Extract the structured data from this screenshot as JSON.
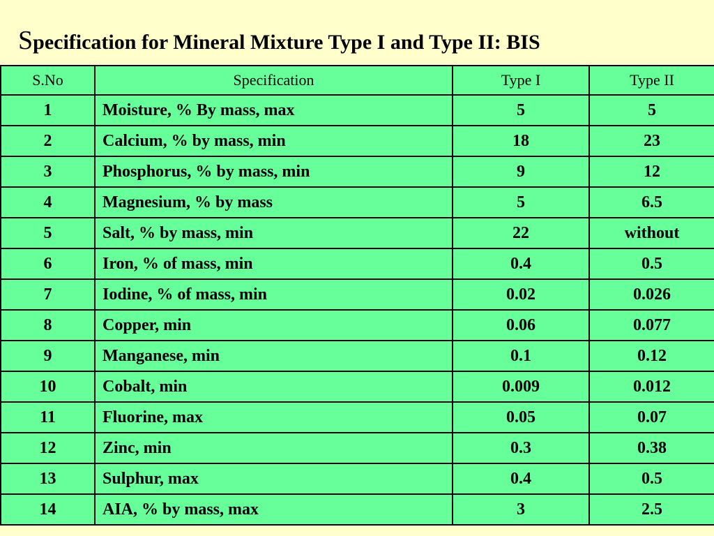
{
  "title": {
    "first_letter": "S",
    "rest": "pecification for Mineral Mixture Type I and Type II: BIS"
  },
  "table": {
    "headers": [
      "S.No",
      "Specification",
      "Type I",
      "Type II"
    ],
    "rows": [
      {
        "sno": "1",
        "spec": "Moisture, % By mass, max",
        "type1": "5",
        "type2": "5"
      },
      {
        "sno": "2",
        "spec": "Calcium, % by mass, min",
        "type1": "18",
        "type2": "23"
      },
      {
        "sno": "3",
        "spec": "Phosphorus, % by mass, min",
        "type1": "9",
        "type2": "12"
      },
      {
        "sno": "4",
        "spec": "Magnesium, % by mass",
        "type1": "5",
        "type2": "6.5"
      },
      {
        "sno": "5",
        "spec": "Salt, % by mass, min",
        "type1": "22",
        "type2": "without"
      },
      {
        "sno": "6",
        "spec": "Iron, % of mass, min",
        "type1": "0.4",
        "type2": "0.5"
      },
      {
        "sno": "7",
        "spec": "Iodine, % of mass, min",
        "type1": "0.02",
        "type2": "0.026"
      },
      {
        "sno": "8",
        "spec": "Copper, min",
        "type1": "0.06",
        "type2": "0.077"
      },
      {
        "sno": "9",
        "spec": "Manganese, min",
        "type1": "0.1",
        "type2": "0.12"
      },
      {
        "sno": "10",
        "spec": "Cobalt, min",
        "type1": "0.009",
        "type2": "0.012"
      },
      {
        "sno": "11",
        "spec": "Fluorine, max",
        "type1": "0.05",
        "type2": "0.07"
      },
      {
        "sno": "12",
        "spec": "Zinc, min",
        "type1": "0.3",
        "type2": "0.38"
      },
      {
        "sno": "13",
        "spec": "Sulphur, max",
        "type1": "0.4",
        "type2": "0.5"
      },
      {
        "sno": "14",
        "spec": "AIA, % by mass, max",
        "type1": "3",
        "type2": "2.5"
      }
    ]
  },
  "colors": {
    "background": "#ffffcc",
    "table_fill": "#66ff99",
    "border": "#000000"
  }
}
